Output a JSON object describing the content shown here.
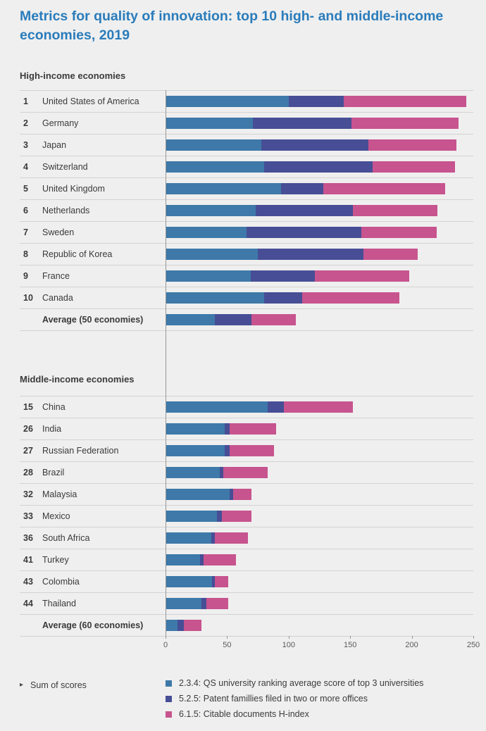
{
  "title": "Metrics for quality of innovation: top 10 high- and middle-income economies, 2019",
  "colors": {
    "title": "#2a7cbb",
    "background": "#efefef",
    "qs_university": "#3e79a9",
    "patent_families": "#474e96",
    "citable_documents": "#c7548e"
  },
  "footer": {
    "marker_label": "Sum of scores"
  },
  "legend": [
    {
      "label": "2.3.4: QS university ranking average score of top 3 universities",
      "color": "#3e79a9"
    },
    {
      "label": "5.2.5: Patent famillies filed in two or more offices",
      "color": "#474e96"
    },
    {
      "label": "6.1.5: Citable documents H-index",
      "color": "#c7548e"
    }
  ],
  "chart_data": {
    "type": "bar",
    "orientation": "horizontal",
    "stacked": true,
    "title": "Metrics for quality of innovation: top 10 high- and middle-income economies, 2019",
    "xlabel": "Sum of scores",
    "xlim": [
      0,
      250
    ],
    "x_ticks": [
      0,
      50,
      100,
      150,
      200,
      250
    ],
    "series": [
      "2.3.4: QS university ranking average score of top 3 universities",
      "5.2.5: Patent famillies filed in two or more offices",
      "6.1.5: Citable documents H-index"
    ],
    "sections": [
      {
        "label": "High-income economies",
        "rows": [
          {
            "rank": "1",
            "name": "United States of America",
            "values": [
              100,
              45,
              99
            ]
          },
          {
            "rank": "2",
            "name": "Germany",
            "values": [
              71,
              80,
              87
            ]
          },
          {
            "rank": "3",
            "name": "Japan",
            "values": [
              78,
              87,
              71
            ]
          },
          {
            "rank": "4",
            "name": "Switzerland",
            "values": [
              80,
              88,
              67
            ]
          },
          {
            "rank": "5",
            "name": "United Kingdom",
            "values": [
              94,
              34,
              99
            ]
          },
          {
            "rank": "6",
            "name": "Netherlands",
            "values": [
              73,
              79,
              69
            ]
          },
          {
            "rank": "7",
            "name": "Sweden",
            "values": [
              66,
              93,
              61
            ]
          },
          {
            "rank": "8",
            "name": "Republic of Korea",
            "values": [
              75,
              86,
              44
            ]
          },
          {
            "rank": "9",
            "name": "France",
            "values": [
              69,
              52,
              77
            ]
          },
          {
            "rank": "10",
            "name": "Canada",
            "values": [
              80,
              31,
              79
            ]
          },
          {
            "rank": "",
            "name": "Average (50 economies)",
            "values": [
              40,
              30,
              36
            ]
          }
        ]
      },
      {
        "label": "Middle-income economies",
        "rows": [
          {
            "rank": "15",
            "name": "China",
            "values": [
              83,
              13,
              56
            ]
          },
          {
            "rank": "26",
            "name": "India",
            "values": [
              48,
              4,
              38
            ]
          },
          {
            "rank": "27",
            "name": "Russian Federation",
            "values": [
              48,
              4,
              36
            ]
          },
          {
            "rank": "28",
            "name": "Brazil",
            "values": [
              44,
              3,
              36
            ]
          },
          {
            "rank": "32",
            "name": "Malaysia",
            "values": [
              52,
              3,
              15
            ]
          },
          {
            "rank": "33",
            "name": "Mexico",
            "values": [
              42,
              4,
              24
            ]
          },
          {
            "rank": "36",
            "name": "South Africa",
            "values": [
              37,
              3,
              27
            ]
          },
          {
            "rank": "41",
            "name": "Turkey",
            "values": [
              28,
              3,
              26
            ]
          },
          {
            "rank": "43",
            "name": "Colombia",
            "values": [
              38,
              2,
              11
            ]
          },
          {
            "rank": "44",
            "name": "Thailand",
            "values": [
              29,
              4,
              18
            ]
          },
          {
            "rank": "",
            "name": "Average (60 economies)",
            "values": [
              10,
              5,
              14
            ]
          }
        ]
      }
    ]
  }
}
